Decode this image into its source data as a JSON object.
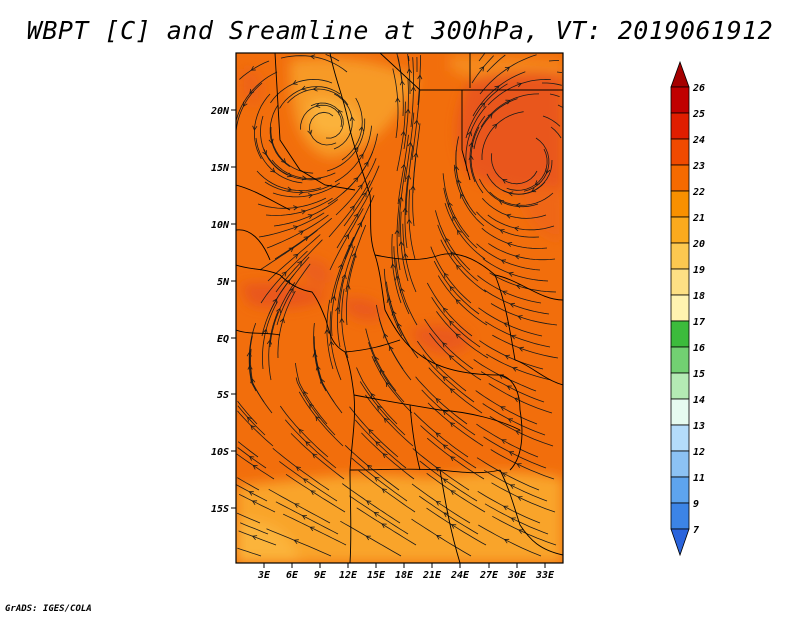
{
  "title": "WBPT [C] and Sreamline at 300hPa, VT: 2019061912",
  "credit": "GrADS: IGES/COLA",
  "lat_labels": [
    "20N",
    "15N",
    "10N",
    "5N",
    "EQ",
    "5S",
    "10S",
    "15S"
  ],
  "lon_labels": [
    "3E",
    "6E",
    "9E",
    "12E",
    "15E",
    "18E",
    "21E",
    "24E",
    "27E",
    "30E",
    "33E"
  ],
  "colorbar": {
    "units": "C",
    "labels": [
      "26",
      "25",
      "24",
      "23",
      "22",
      "21",
      "20",
      "19",
      "18",
      "17",
      "16",
      "15",
      "14",
      "13",
      "12",
      "11",
      "9",
      "7"
    ],
    "colors": [
      "#a50000",
      "#c00000",
      "#e01e00",
      "#f04a00",
      "#f56a00",
      "#f89000",
      "#fcae2c",
      "#fcd470",
      "#fff1a8",
      "#3cbb3c",
      "#70d070",
      "#a8e6a8",
      "#e6fae6",
      "#a8d2f8",
      "#86baf0",
      "#5aa0ec",
      "#3c82e6",
      "#2a64dc",
      "#1e4fd0"
    ]
  },
  "colors": {
    "bg_field": "#f26e0c",
    "cool_field": "#f9a42a",
    "warm_field": "#e9561a",
    "streamline": "#1a1a1a",
    "border": "#000000"
  }
}
